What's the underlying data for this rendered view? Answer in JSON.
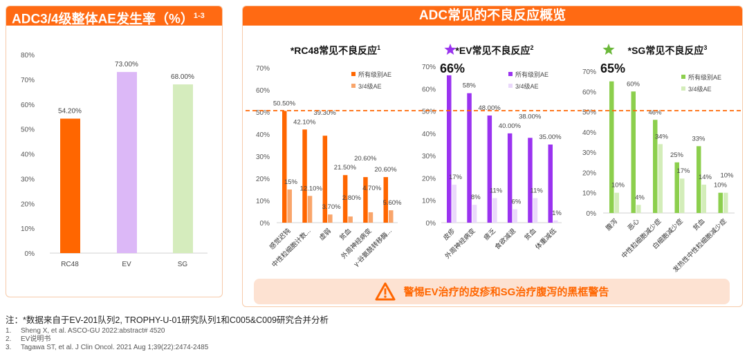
{
  "left": {
    "title": "ADC3/4级整体AE发生率（%）",
    "title_sup": "1-3"
  },
  "right": {
    "title": "ADC常见的不良反应概览",
    "warning": "警惕EV治疗的皮疹和SG治疗腹泻的黑框警告",
    "warning_icon": "warning-triangle-icon"
  },
  "notes": {
    "main": "注：*数据来自于EV-201队列2, TROPHY-U-01研究队列1和C005&C009研究合并分析",
    "refs": [
      {
        "n": "1.",
        "text": "Sheng X, et al. ASCO-GU 2022:abstract# 4520"
      },
      {
        "n": "2.",
        "text": "EV说明书"
      },
      {
        "n": "3.",
        "text": "Tagawa ST, et al. J Clin Oncol. 2021 Aug 1;39(22):2474-2485"
      }
    ]
  },
  "chart_data": [
    {
      "type": "bar",
      "title": "ADC3/4级整体AE发生率（%）",
      "categories": [
        "RC48",
        "EV",
        "SG"
      ],
      "values": [
        54.2,
        73.0,
        68.0
      ],
      "labels": [
        "54.20%",
        "73.00%",
        "68.00%"
      ],
      "colors": [
        "#ff6600",
        "#dcb8f7",
        "#d5ecbd"
      ],
      "yticks": [
        "0%",
        "10%",
        "20%",
        "30%",
        "40%",
        "50%",
        "60%",
        "70%",
        "80%"
      ],
      "ylim": [
        0,
        80
      ]
    },
    {
      "type": "bar",
      "title": "*RC48常见不良反应",
      "title_sup": "1",
      "categories": [
        "感觉迟钝",
        "中性粒细胞计数...",
        "虚弱",
        "贫血",
        "外周神经病变",
        "γ-谷氨酰转移酶..."
      ],
      "series": [
        {
          "name": "所有级别AE",
          "color": "#ff6600",
          "values": [
            50.5,
            42.1,
            39.3,
            21.5,
            20.6,
            20.6
          ],
          "labels": [
            "50.50%",
            "42.10%",
            "39.30%",
            "21.50%",
            "20.60%",
            "20.60%"
          ]
        },
        {
          "name": "3/4级AE",
          "color": "#f9a56b",
          "values": [
            15,
            12.1,
            3.7,
            2.8,
            4.7,
            5.6
          ],
          "labels": [
            "15%",
            "12.10%",
            "3.70%",
            "2.80%",
            "4.70%",
            "5.60%"
          ]
        }
      ],
      "yticks": [
        "0%",
        "10%",
        "20%",
        "30%",
        "40%",
        "50%",
        "60%",
        "70%"
      ],
      "ylim": [
        0,
        70
      ],
      "reference_line": 50
    },
    {
      "type": "bar",
      "title": "*EV常见不良反应",
      "title_sup": "2",
      "highlight": "66%",
      "highlight_color": "#9933ee",
      "categories": [
        "皮疹",
        "外周神经病变",
        "疲乏",
        "食欲减退",
        "贫血",
        "体重减低"
      ],
      "series": [
        {
          "name": "所有级别AE",
          "color": "#9a33f0",
          "values": [
            66,
            58,
            48,
            40,
            38,
            35
          ],
          "labels": [
            "",
            "58%",
            "48.00%",
            "40.00%",
            "38.00%",
            "35.00%"
          ]
        },
        {
          "name": "3/4级AE",
          "color": "#ead8fb",
          "values": [
            17,
            8,
            11,
            6,
            11,
            1
          ],
          "labels": [
            "17%",
            "8%",
            "11%",
            "6%",
            "11%",
            "1%"
          ]
        }
      ],
      "yticks": [
        "0%",
        "10%",
        "20%",
        "30%",
        "40%",
        "50%",
        "60%",
        "70%"
      ],
      "ylim": [
        0,
        70
      ],
      "reference_line": 50
    },
    {
      "type": "bar",
      "title": "*SG常见不良反应",
      "title_sup": "3",
      "highlight": "65%",
      "highlight_color": "#6bb83a",
      "categories": [
        "腹泻",
        "恶心",
        "中性粒细胞减少症",
        "白细胞减少症",
        "贫血",
        "发热性中性粒细胞减少症"
      ],
      "series": [
        {
          "name": "所有级别AE",
          "color": "#8ccf4d",
          "values": [
            65,
            60,
            46,
            25,
            33,
            10
          ],
          "labels": [
            "",
            "60%",
            "46%",
            "25%",
            "33%",
            "10%"
          ]
        },
        {
          "name": "3/4级AE",
          "color": "#d3edb9",
          "values": [
            10,
            4,
            34,
            17,
            14,
            10
          ],
          "labels": [
            "10%",
            "4%",
            "34%",
            "17%",
            "14%",
            "10%"
          ]
        }
      ],
      "yticks": [
        "0%",
        "10%",
        "20%",
        "30%",
        "40%",
        "50%",
        "60%",
        "70%"
      ],
      "ylim": [
        0,
        70
      ],
      "reference_line": 50
    }
  ]
}
